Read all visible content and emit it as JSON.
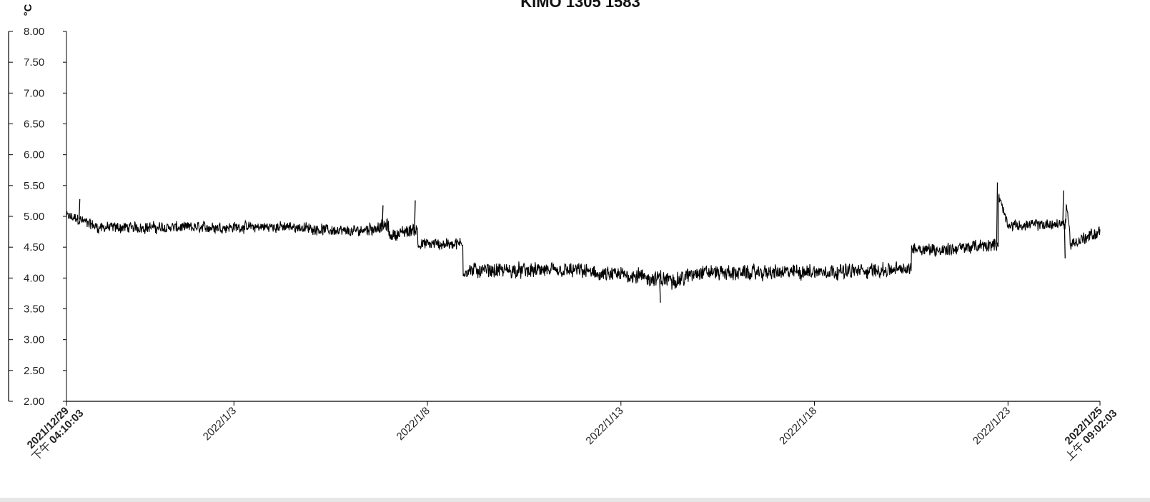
{
  "chart_data": {
    "type": "line",
    "title": "KIMO 1305 1583",
    "ylabel": "°C",
    "xlabel": "",
    "ylim": [
      2.0,
      8.0
    ],
    "y_ticks": [
      "8.00",
      "7.50",
      "7.00",
      "6.50",
      "6.00",
      "5.50",
      "5.00",
      "4.50",
      "4.00",
      "3.50",
      "3.00",
      "2.50",
      "2.00"
    ],
    "y_tick_values": [
      8.0,
      7.5,
      7.0,
      6.5,
      6.0,
      5.5,
      5.0,
      4.5,
      4.0,
      3.5,
      3.0,
      2.5,
      2.0
    ],
    "x_start": "2021-12-29T16:10:03",
    "x_end": "2022-01-25T09:02:03",
    "x_ticks": [
      {
        "date": "2021-12-29T16:10:03",
        "line1": "2021/12/29",
        "line2_prefix": "下午",
        "line2_time": "04:10:03"
      },
      {
        "date": "2022-01-03T00:00:00",
        "line1": "2022/1/3"
      },
      {
        "date": "2022-01-08T00:00:00",
        "line1": "2022/1/8"
      },
      {
        "date": "2022-01-13T00:00:00",
        "line1": "2022/1/13"
      },
      {
        "date": "2022-01-18T00:00:00",
        "line1": "2022/1/18"
      },
      {
        "date": "2022-01-23T00:00:00",
        "line1": "2022/1/23"
      },
      {
        "date": "2022-01-25T09:02:03",
        "line1": "2022/1/25",
        "line2_prefix": "上午",
        "line2_time": "09:02:03"
      }
    ],
    "series": [
      {
        "color": "#000000",
        "grid": false,
        "points": [
          {
            "x": "2021-12-29T16:10:03",
            "mid": 5.0,
            "noise": 0.12
          },
          {
            "x": "2021-12-30T00:00:00",
            "mid": 4.95,
            "noise": 0.12
          },
          {
            "x": "2021-12-30T12:00:00",
            "mid": 4.82,
            "noise": 0.12
          },
          {
            "x": "2022-01-02T00:00:00",
            "mid": 4.82,
            "noise": 0.12
          },
          {
            "x": "2022-01-04T12:00:00",
            "mid": 4.83,
            "noise": 0.11
          },
          {
            "x": "2022-01-06T00:00:00",
            "mid": 4.75,
            "noise": 0.12
          },
          {
            "x": "2022-01-07T00:00:00",
            "mid": 4.85,
            "noise": 0.15
          },
          {
            "x": "2022-01-07T00:00:00",
            "mid": 4.68,
            "noise": 0.12
          },
          {
            "x": "2022-01-07T18:00:00",
            "mid": 4.8,
            "noise": 0.15
          },
          {
            "x": "2022-01-07T18:00:00",
            "mid": 4.55,
            "noise": 0.12
          },
          {
            "x": "2022-01-08T22:00:00",
            "mid": 4.55,
            "noise": 0.14
          },
          {
            "x": "2022-01-08T22:00:00",
            "mid": 4.12,
            "noise": 0.16
          },
          {
            "x": "2022-01-12T00:00:00",
            "mid": 4.12,
            "noise": 0.16
          },
          {
            "x": "2022-01-12T12:00:00",
            "mid": 4.05,
            "noise": 0.16
          },
          {
            "x": "2022-01-13T12:00:00",
            "mid": 4.05,
            "noise": 0.18
          },
          {
            "x": "2022-01-13T12:00:00",
            "mid": 4.0,
            "noise": 0.18
          },
          {
            "x": "2022-01-14T12:00:00",
            "mid": 3.97,
            "noise": 0.18
          },
          {
            "x": "2022-01-15T00:00:00",
            "mid": 4.1,
            "noise": 0.16
          },
          {
            "x": "2022-01-16T00:00:00",
            "mid": 4.08,
            "noise": 0.16
          },
          {
            "x": "2022-01-19T12:00:00",
            "mid": 4.12,
            "noise": 0.16
          },
          {
            "x": "2022-01-20T12:00:00",
            "mid": 4.15,
            "noise": 0.14
          },
          {
            "x": "2022-01-20T12:00:00",
            "mid": 4.5,
            "noise": 0.14
          },
          {
            "x": "2022-01-21T06:00:00",
            "mid": 4.45,
            "noise": 0.14
          },
          {
            "x": "2022-01-22T18:00:00",
            "mid": 4.55,
            "noise": 0.14
          },
          {
            "x": "2022-01-22T18:00:00",
            "mid": 5.35,
            "noise": 0.1
          },
          {
            "x": "2022-01-23T00:00:00",
            "mid": 4.85,
            "noise": 0.1
          },
          {
            "x": "2022-01-24T12:00:00",
            "mid": 4.88,
            "noise": 0.13
          },
          {
            "x": "2022-01-24T12:00:00",
            "mid": 5.25,
            "noise": 0.08
          },
          {
            "x": "2022-01-24T15:00:00",
            "mid": 4.55,
            "noise": 0.14
          },
          {
            "x": "2022-01-25T09:02:03",
            "mid": 4.75,
            "noise": 0.14
          }
        ],
        "spikes": [
          {
            "x": "2021-12-30T00:00:00",
            "y": 5.28
          },
          {
            "x": "2022-01-06T20:00:00",
            "y": 5.18
          },
          {
            "x": "2022-01-07T16:00:00",
            "y": 5.26
          },
          {
            "x": "2022-01-22T17:00:00",
            "y": 5.55
          },
          {
            "x": "2022-01-24T10:00:00",
            "y": 5.42
          },
          {
            "x": "2022-01-24T11:00:00",
            "y": 4.32
          },
          {
            "x": "2022-01-14T00:00:00",
            "y": 3.6
          }
        ]
      }
    ]
  }
}
